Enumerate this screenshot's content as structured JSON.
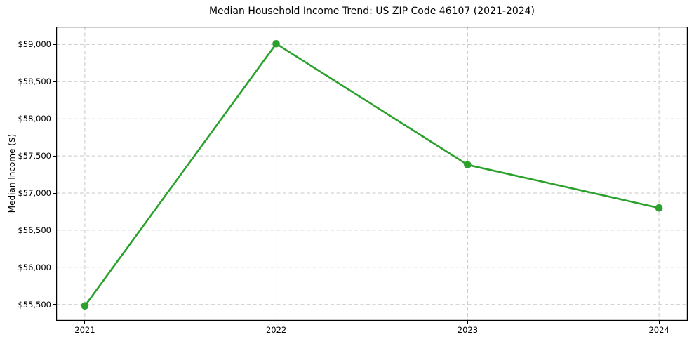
{
  "chart_data": {
    "type": "line",
    "title": "Median Household Income Trend: US ZIP Code 46107 (2021-2024)",
    "xlabel": "",
    "ylabel": "Median Income ($)",
    "categories": [
      "2021",
      "2022",
      "2023",
      "2024"
    ],
    "x": [
      2021,
      2022,
      2023,
      2024
    ],
    "values": [
      55480,
      59010,
      57380,
      56800
    ],
    "xlim": [
      2020.85,
      2024.15
    ],
    "ylim": [
      55280,
      59240
    ],
    "yticks": [
      55500,
      56000,
      56500,
      57000,
      57500,
      58000,
      58500,
      59000
    ],
    "ytick_labels": [
      "$55,500",
      "$56,000",
      "$56,500",
      "$57,000",
      "$57,500",
      "$58,000",
      "$58,500",
      "$59,000"
    ],
    "grid": true,
    "grid_style": "dashed",
    "legend": "none",
    "colors": {
      "line": "#2ca02c",
      "marker": "#2ca02c",
      "grid": "#c9c9c9",
      "spine": "#000000",
      "text": "#000000",
      "background": "#ffffff"
    }
  }
}
